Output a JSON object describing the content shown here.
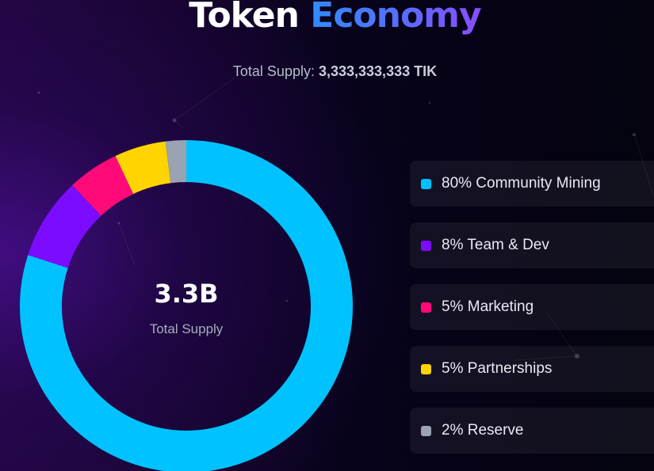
{
  "header": {
    "title_word1": "Token",
    "title_word2": "Economy",
    "supply_label": "Total Supply:",
    "supply_value": "3,333,333,333 TIK"
  },
  "donut": {
    "center_value": "3.3B",
    "center_label": "Total Supply"
  },
  "chart_data": {
    "type": "pie",
    "categories": [
      "Community Mining",
      "Team & Dev",
      "Marketing",
      "Partnerships",
      "Reserve"
    ],
    "values": [
      80,
      8,
      5,
      5,
      2
    ],
    "colors": [
      "#00c2ff",
      "#7c0cff",
      "#ff0a78",
      "#ffd400",
      "#9aa3b2"
    ]
  },
  "legend": {
    "items": [
      {
        "label": "80% Community Mining",
        "color": "#00c2ff"
      },
      {
        "label": "8% Team & Dev",
        "color": "#7c0cff"
      },
      {
        "label": "5% Marketing",
        "color": "#ff0a78"
      },
      {
        "label": "5% Partnerships",
        "color": "#ffd400"
      },
      {
        "label": "2% Reserve",
        "color": "#9aa3b2"
      }
    ]
  }
}
